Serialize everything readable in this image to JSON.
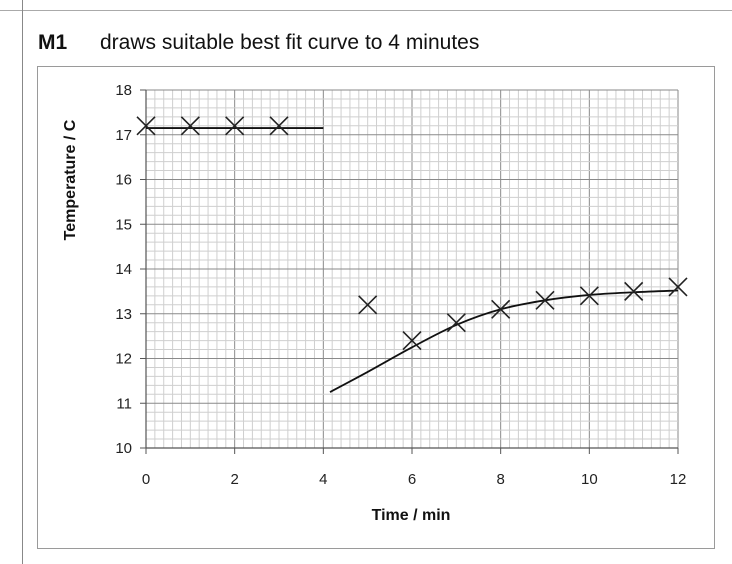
{
  "header": {
    "mark": "M1",
    "text": "draws suitable best fit curve to 4 minutes"
  },
  "chart_data": {
    "type": "scatter",
    "xlabel": "Time / min",
    "ylabel": "Temperature / C",
    "xlim": [
      0,
      12
    ],
    "ylim": [
      10,
      18
    ],
    "x_ticks": [
      0,
      2,
      4,
      6,
      8,
      10,
      12
    ],
    "y_ticks": [
      10,
      11,
      12,
      13,
      14,
      15,
      16,
      17,
      18
    ],
    "grid": true,
    "series": [
      {
        "marker": "x",
        "points": [
          {
            "x": 0,
            "y": 17.2
          },
          {
            "x": 1,
            "y": 17.2
          },
          {
            "x": 2,
            "y": 17.2
          },
          {
            "x": 3,
            "y": 17.2
          },
          {
            "x": 5,
            "y": 13.2
          },
          {
            "x": 6,
            "y": 12.4
          },
          {
            "x": 7,
            "y": 12.8
          },
          {
            "x": 8,
            "y": 13.1
          },
          {
            "x": 9,
            "y": 13.3
          },
          {
            "x": 10,
            "y": 13.4
          },
          {
            "x": 11,
            "y": 13.5
          },
          {
            "x": 12,
            "y": 13.6
          }
        ]
      }
    ],
    "best_fit_lines": [
      {
        "points": [
          [
            0,
            17.15
          ],
          [
            4,
            17.15
          ]
        ]
      },
      {
        "points": [
          [
            4.15,
            11.25
          ],
          [
            5,
            11.7
          ],
          [
            6,
            12.25
          ],
          [
            7,
            12.75
          ],
          [
            8,
            13.1
          ],
          [
            9,
            13.3
          ],
          [
            10,
            13.42
          ],
          [
            11,
            13.48
          ],
          [
            12,
            13.52
          ]
        ]
      }
    ]
  }
}
